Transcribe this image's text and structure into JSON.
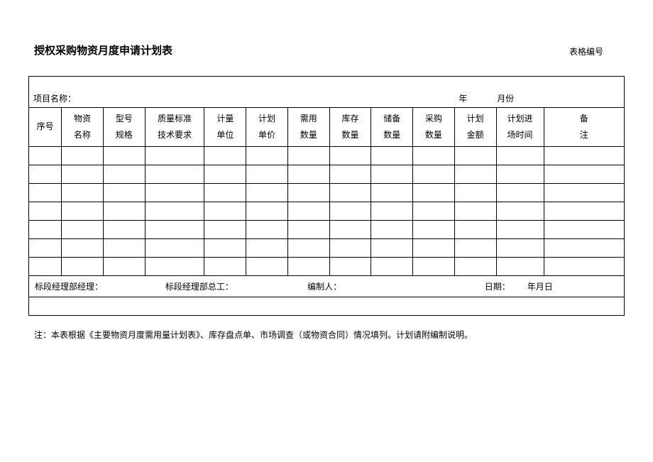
{
  "form_number_label": "表格编号",
  "title": "授权采购物资月度申请计划表",
  "project_label": "项目名称：",
  "year_label": "年",
  "month_label": "月份",
  "columns": {
    "c0_top": "序号",
    "c1_top": "物资",
    "c1_bot": "名称",
    "c2_top": "型号",
    "c2_bot": "规格",
    "c3_top": "质量标准",
    "c3_bot": "技术要求",
    "c4_top": "计量",
    "c4_bot": "单位",
    "c5_top": "计划",
    "c5_bot": "单价",
    "c6_top": "需用",
    "c6_bot": "数量",
    "c7_top": "库存",
    "c7_bot": "数量",
    "c8_top": "储备",
    "c8_bot": "数量",
    "c9_top": "采购",
    "c9_bot": "数量",
    "c10_top": "计划",
    "c10_bot": "金额",
    "c11_top": "计划进",
    "c11_bot": "场时间",
    "c12_top": "备",
    "c12_bot": "注"
  },
  "signatures": {
    "mgr": "标段经理部经理：",
    "chief": "标段经理部总工：",
    "preparer": "编制人：",
    "date_label": "日期：",
    "date_value": "年月日"
  },
  "footnote": "注：本表根据《主要物资月度需用量计划表》、库存盘点单、市场调查（或物资合同）情况填列。计划请附编制说明。",
  "colwidths": [
    "5.5%",
    "7%",
    "7%",
    "10%",
    "7%",
    "7%",
    "7%",
    "7%",
    "7%",
    "7%",
    "7%",
    "8%",
    "13.5%"
  ],
  "empty_rows": 7,
  "colors": {
    "border": "#000000",
    "bg": "#ffffff",
    "text": "#000000"
  }
}
